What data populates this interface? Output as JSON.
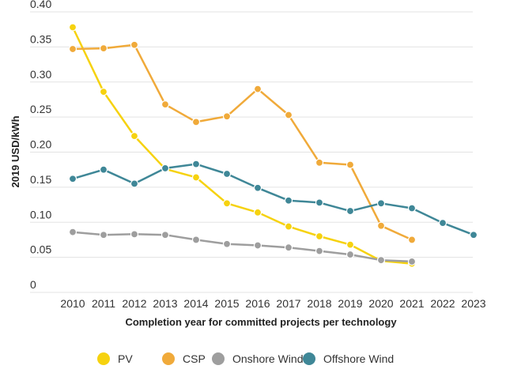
{
  "chart_data": {
    "type": "line",
    "title": "",
    "xlabel": "Completion year for committed projects per technology",
    "ylabel": "2019 USD/kWh",
    "x": [
      2010,
      2011,
      2012,
      2013,
      2014,
      2015,
      2016,
      2017,
      2018,
      2019,
      2020,
      2021,
      2022,
      2023
    ],
    "ylim": [
      0,
      0.4
    ],
    "yticks": [
      "0",
      "0.05",
      "0.10",
      "0.15",
      "0.20",
      "0.25",
      "0.30",
      "0.35",
      "0.40"
    ],
    "grid": true,
    "legend_position": "bottom",
    "series": [
      {
        "name": "PV",
        "color": "#f6d20f",
        "points": [
          [
            2010,
            0.378
          ],
          [
            2011,
            0.286
          ],
          [
            2012,
            0.223
          ],
          [
            2013,
            0.176
          ],
          [
            2014,
            0.164
          ],
          [
            2015,
            0.127
          ],
          [
            2016,
            0.114
          ],
          [
            2017,
            0.094
          ],
          [
            2018,
            0.08
          ],
          [
            2019,
            0.068
          ],
          [
            2020,
            0.045
          ],
          [
            2021,
            0.041
          ]
        ]
      },
      {
        "name": "CSP",
        "color": "#f0aa3a",
        "points": [
          [
            2010,
            0.347
          ],
          [
            2011,
            0.348
          ],
          [
            2012,
            0.353
          ],
          [
            2013,
            0.268
          ],
          [
            2014,
            0.243
          ],
          [
            2015,
            0.251
          ],
          [
            2016,
            0.29
          ],
          [
            2017,
            0.253
          ],
          [
            2018,
            0.185
          ],
          [
            2019,
            0.182
          ],
          [
            2020,
            0.095
          ],
          [
            2021,
            0.075
          ]
        ]
      },
      {
        "name": "Onshore Wind",
        "color": "#9e9e9e",
        "points": [
          [
            2010,
            0.086
          ],
          [
            2011,
            0.082
          ],
          [
            2012,
            0.083
          ],
          [
            2013,
            0.082
          ],
          [
            2014,
            0.075
          ],
          [
            2015,
            0.069
          ],
          [
            2016,
            0.067
          ],
          [
            2017,
            0.064
          ],
          [
            2018,
            0.059
          ],
          [
            2019,
            0.054
          ],
          [
            2020,
            0.046
          ],
          [
            2021,
            0.044
          ]
        ]
      },
      {
        "name": "Offshore Wind",
        "color": "#3f8797",
        "points": [
          [
            2010,
            0.162
          ],
          [
            2011,
            0.175
          ],
          [
            2012,
            0.155
          ],
          [
            2013,
            0.177
          ],
          [
            2014,
            0.183
          ],
          [
            2015,
            0.169
          ],
          [
            2016,
            0.149
          ],
          [
            2017,
            0.131
          ],
          [
            2018,
            0.128
          ],
          [
            2019,
            0.116
          ],
          [
            2020,
            0.127
          ],
          [
            2021,
            0.12
          ],
          [
            2022,
            0.099
          ],
          [
            2023,
            0.082
          ]
        ]
      }
    ]
  }
}
